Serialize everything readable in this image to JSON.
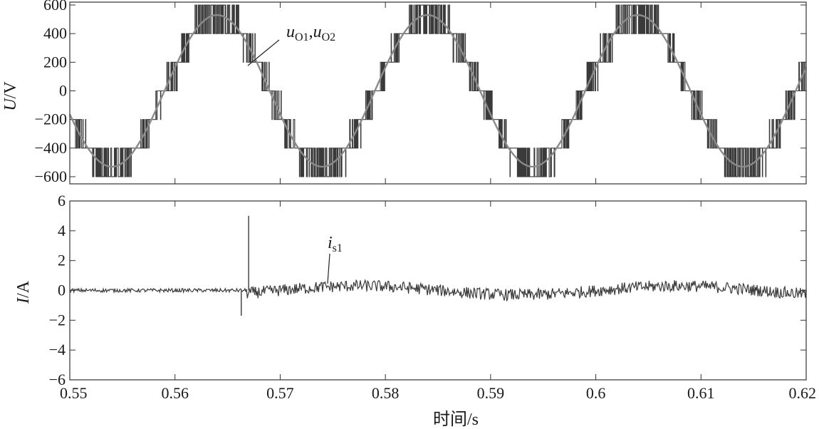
{
  "chart_data": [
    {
      "type": "line",
      "panel": "top",
      "ylabel": "U/V",
      "xlim": [
        0.55,
        0.62
      ],
      "ylim": [
        -650,
        620
      ],
      "yticks": [
        -600,
        -400,
        -200,
        0,
        200,
        400,
        600
      ],
      "ytick_labels": [
        "−600",
        "−400",
        "−200",
        "0",
        "200",
        "400",
        "600"
      ],
      "annotation": "uO1,uO2",
      "series": [
        {
          "name": "uO1",
          "description": "smooth sinusoidal output voltage",
          "amplitude": 530,
          "frequency_hz": 50,
          "peak_time_s": 0.564,
          "color": "#8a8a8a"
        },
        {
          "name": "uO2",
          "description": "multilevel staircase PWM output voltage",
          "levels": [
            -600,
            -400,
            -200,
            0,
            200,
            400,
            600
          ],
          "amplitude": 530,
          "frequency_hz": 50,
          "peak_time_s": 0.564,
          "color": "#3a3a3a"
        }
      ]
    },
    {
      "type": "line",
      "panel": "bottom",
      "ylabel": "I/A",
      "xlabel": "时间/s",
      "xlim": [
        0.55,
        0.62
      ],
      "ylim": [
        -6,
        6
      ],
      "yticks": [
        -6,
        -4,
        -2,
        0,
        2,
        4,
        6
      ],
      "ytick_labels": [
        "−6",
        "−4",
        "−2",
        "0",
        "2",
        "4",
        "6"
      ],
      "xticks": [
        0.55,
        0.56,
        0.57,
        0.58,
        0.59,
        0.6,
        0.61,
        0.62
      ],
      "xtick_labels": [
        "0.55",
        "0.56",
        "0.57",
        "0.58",
        "0.59",
        "0.6",
        "0.61",
        "0.62"
      ],
      "annotation": "is1",
      "series": [
        {
          "name": "is1",
          "description": "current near zero, spike at switching instant",
          "pre_switch_value": 0.0,
          "switch_time_s": 0.567,
          "spike_max": 5.0,
          "spike_min": -1.7,
          "post_switch_ripple_amplitude": 0.4,
          "post_switch_low_freq_amplitude": 0.3,
          "color": "#3a3a3a"
        }
      ]
    }
  ]
}
